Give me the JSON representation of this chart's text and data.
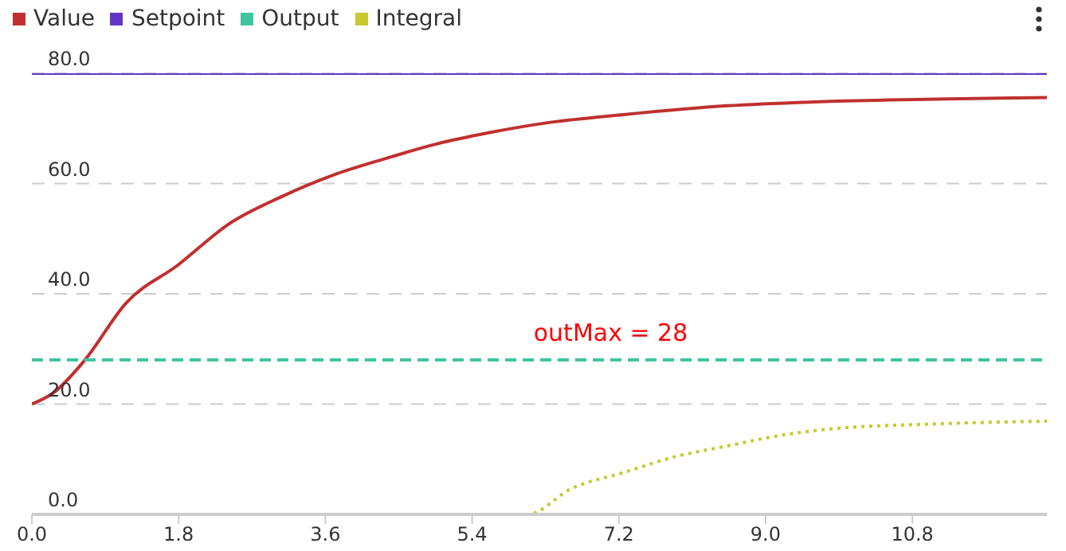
{
  "chart_data": {
    "type": "line",
    "legend": "top left",
    "grid": "y",
    "xlim": [
      0,
      12.45
    ],
    "ylim": [
      0,
      80
    ],
    "xticks": [
      {
        "value": 0,
        "label": "0.0"
      },
      1.8,
      3.6,
      5.4,
      7.2,
      {
        "value": 9,
        "label": "9.0"
      },
      10.8
    ],
    "yticks": [
      {
        "value": 0,
        "label": "0.0"
      },
      {
        "value": 20,
        "label": "20.0"
      },
      {
        "value": 40,
        "label": "40.0"
      },
      {
        "value": 60,
        "label": "60.0"
      },
      {
        "value": 80,
        "label": "80.0"
      }
    ],
    "annotations": [
      {
        "text": "outMax = 28",
        "x": 7.1,
        "y": 28
      }
    ],
    "series": [
      {
        "name": "Value",
        "color": "#c0302e",
        "line_style": "solid",
        "x": [
          0,
          0.26,
          0.64,
          1.16,
          1.79,
          2.43,
          3.06,
          3.69,
          4.33,
          4.97,
          5.6,
          6.36,
          7.26,
          8.53,
          9.8,
          11.07,
          12.45
        ],
        "values": [
          20,
          22,
          27.8,
          38.4,
          45.2,
          52.8,
          57.6,
          61.5,
          64.5,
          67.2,
          69.2,
          71.1,
          72.5,
          74.1,
          74.9,
          75.3,
          75.6
        ]
      },
      {
        "name": "Setpoint",
        "color": "#6236c4",
        "line_style": "solid",
        "x": [
          0,
          12.45
        ],
        "values": [
          80,
          80
        ]
      },
      {
        "name": "Output",
        "color": "#3ec49e",
        "line_style": "dashed",
        "x": [
          0,
          12.45
        ],
        "values": [
          28,
          28
        ]
      },
      {
        "name": "Integral",
        "color": "#c8c832",
        "line_style": "dotted",
        "x": [
          0,
          6.08,
          6.62,
          7.26,
          7.9,
          8.53,
          9.17,
          9.8,
          11.07,
          12.45
        ],
        "values": [
          0,
          0,
          4.7,
          7.6,
          10.5,
          12.4,
          14.3,
          15.5,
          16.4,
          16.9
        ]
      }
    ]
  }
}
